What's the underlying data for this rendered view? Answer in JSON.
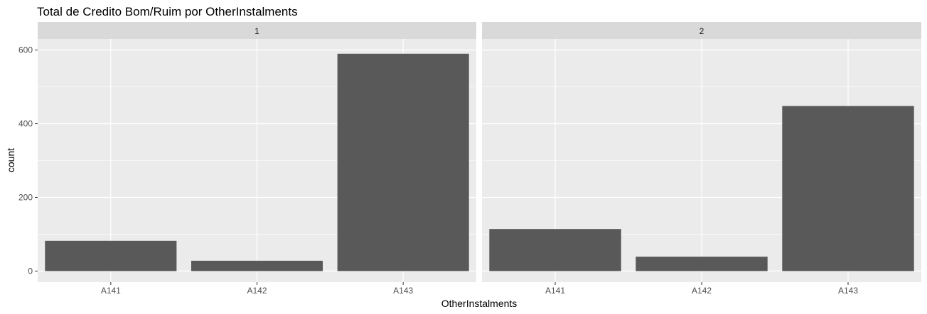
{
  "chart_data": {
    "type": "bar",
    "title": "Total de Credito Bom/Ruim por OtherInstalments",
    "xlabel": "OtherInstalments",
    "ylabel": "count",
    "categories": [
      "A141",
      "A142",
      "A143"
    ],
    "ylim": [
      -30,
      630
    ],
    "y_ticks": [
      0,
      200,
      400,
      600
    ],
    "grid": true,
    "facets": [
      {
        "label": "1",
        "values": [
          82,
          28,
          590
        ]
      },
      {
        "label": "2",
        "values": [
          114,
          39,
          448
        ]
      }
    ],
    "colors": {
      "bar": "#595959",
      "panel_bg": "#ebebeb",
      "strip_bg": "#d9d9d9",
      "grid": "#ffffff"
    }
  }
}
